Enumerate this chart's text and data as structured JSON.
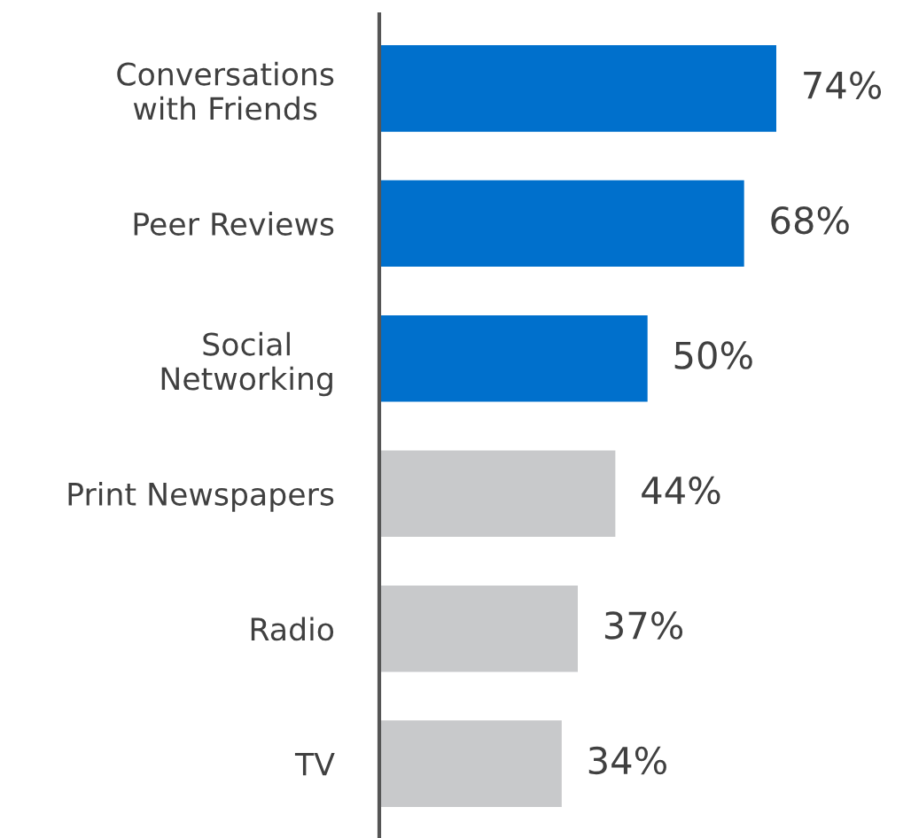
{
  "chart_data": {
    "type": "bar",
    "orientation": "horizontal",
    "categories": [
      "Conversations\nwith Friends",
      "Peer Reviews",
      "Social\nNetworking",
      "Print Newspapers",
      "Radio",
      "TV"
    ],
    "values": [
      74,
      68,
      50,
      44,
      37,
      34
    ],
    "colors": [
      "#0070cc",
      "#0070cc",
      "#0070cc",
      "#c8c9cb",
      "#c8c9cb",
      "#c8c9cb"
    ],
    "value_labels": [
      "74%",
      "68%",
      "50%",
      "44%",
      "37%",
      "34%"
    ],
    "tick_labels": "y",
    "grid": false,
    "legend": false
  }
}
